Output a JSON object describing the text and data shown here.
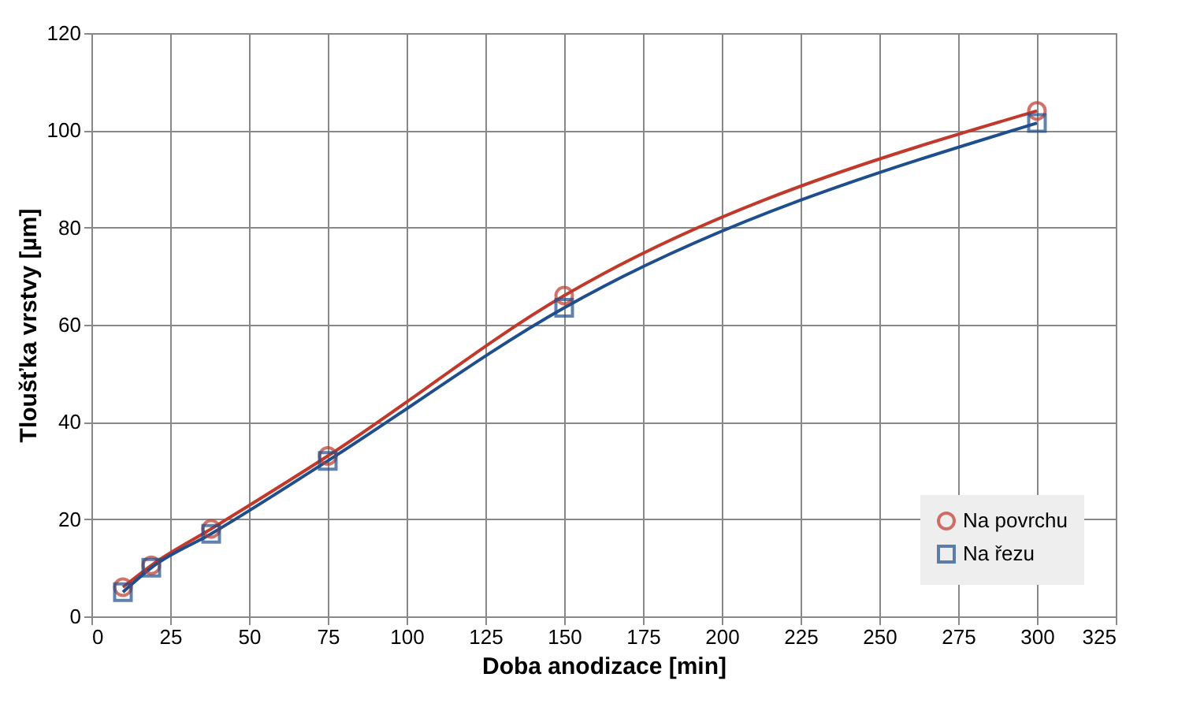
{
  "chart_data": {
    "type": "line",
    "xlabel": "Doba anodizace [min]",
    "ylabel": "Tloušťka vrstvy [µm]",
    "x": [
      10,
      19,
      38,
      75,
      150,
      300
    ],
    "series": [
      {
        "name": "Na povrchu",
        "color": "#c0392b",
        "marker": "circle",
        "values": [
          6,
          10.5,
          18,
          33,
          66,
          104
        ]
      },
      {
        "name": "Na řezu",
        "color": "#1f4e8c",
        "marker": "square",
        "values": [
          5,
          10,
          17,
          32,
          63.5,
          101.5
        ]
      }
    ],
    "xlim": [
      0,
      325
    ],
    "xticks": [
      0,
      25,
      50,
      75,
      100,
      125,
      150,
      175,
      200,
      225,
      250,
      275,
      300,
      325
    ],
    "ylim": [
      0,
      120
    ],
    "yticks": [
      0,
      20,
      40,
      60,
      80,
      100,
      120
    ],
    "grid": true,
    "legend": "bottom right",
    "line_style": "solid"
  }
}
